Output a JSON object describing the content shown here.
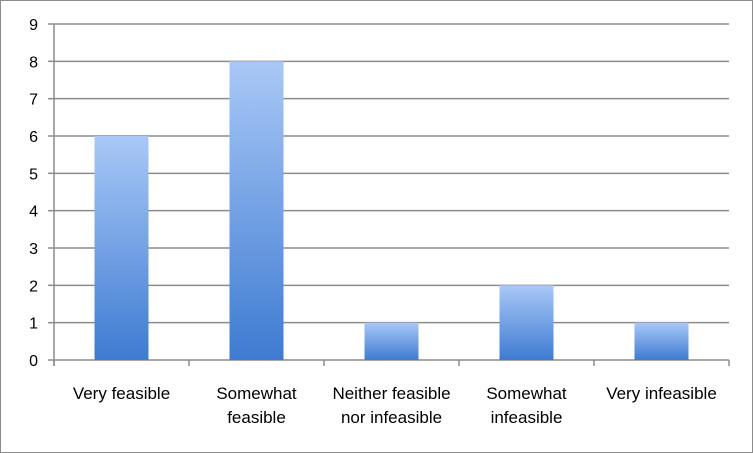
{
  "chart_data": {
    "type": "bar",
    "categories": [
      [
        "Very feasible"
      ],
      [
        "Somewhat",
        "feasible"
      ],
      [
        "Neither feasible",
        "nor infeasible"
      ],
      [
        "Somewhat",
        "infeasible"
      ],
      [
        "Very infeasible"
      ]
    ],
    "values": [
      6,
      8,
      1,
      2,
      1
    ],
    "yticks": [
      "0",
      "1",
      "2",
      "3",
      "4",
      "5",
      "6",
      "7",
      "8",
      "9"
    ],
    "ylim": [
      0,
      9
    ],
    "grid": true,
    "legend": "none",
    "colors": {
      "bar_top": "#a9c8f7",
      "bar_bottom": "#3e7bd1",
      "grid": "#8c8c8c",
      "axis": "#8c8c8c"
    }
  }
}
